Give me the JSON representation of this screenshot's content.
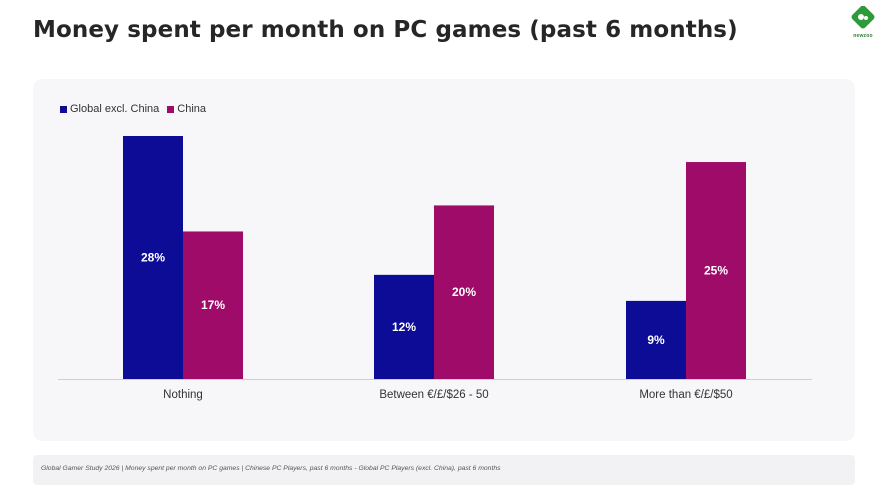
{
  "header": {
    "title": "Money spent per month on PC games (past 6 months)",
    "logo_text": "newzoo",
    "logo_icon": "newzoo-logo-icon"
  },
  "colors": {
    "global": "#0c0c96",
    "china": "#9e0b68",
    "axis": "#d0d0d0",
    "panel": "#f7f7f9"
  },
  "chart_data": {
    "type": "bar",
    "title": "Money spent per month on PC games (past 6 months)",
    "categories": [
      "Nothing",
      "Between €/£/$26 - 50",
      "More than €/£/$50"
    ],
    "series": [
      {
        "name": "Global excl. China",
        "values": [
          28,
          12,
          9
        ],
        "labels": [
          "28%",
          "12%",
          "9%"
        ]
      },
      {
        "name": "China",
        "values": [
          17,
          20,
          25
        ],
        "labels": [
          "17%",
          "20%",
          "25%"
        ]
      }
    ],
    "ylim": [
      0,
      28
    ],
    "grid": false,
    "legend": "top-left",
    "xlabel": "",
    "ylabel": ""
  },
  "footer": {
    "source": "Global Gamer Study 2026 | Money spent per month on PC games | Chinese PC Players, past 6 months - Global PC Players (excl. China), past 6 months"
  }
}
